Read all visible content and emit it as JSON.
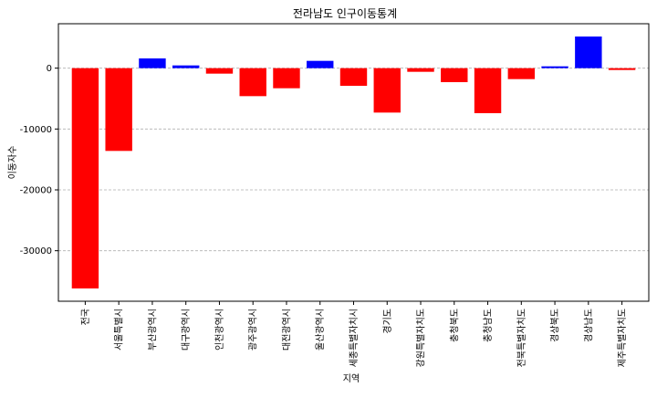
{
  "chart_data": {
    "type": "bar",
    "title": "전라남도 인구이동통계",
    "xlabel": "지역",
    "ylabel": "이동자수",
    "categories": [
      "전국",
      "서울특별시",
      "부산광역시",
      "대구광역시",
      "인천광역시",
      "광주광역시",
      "대전광역시",
      "울산광역시",
      "세종특별자치시",
      "경기도",
      "강원특별자치도",
      "충청북도",
      "충청남도",
      "전북특별자치도",
      "경상북도",
      "경상남도",
      "제주특별자치도"
    ],
    "values": [
      -36200,
      -13600,
      1600,
      450,
      -900,
      -4600,
      -3300,
      1200,
      -2900,
      -7300,
      -600,
      -2300,
      -7400,
      -1800,
      300,
      5200,
      -300
    ],
    "ylim": [
      -38300,
      7300
    ],
    "yticks": [
      0,
      -10000,
      -20000,
      -30000
    ],
    "ytick_labels": [
      "0",
      "-10000",
      "-20000",
      "-30000"
    ],
    "grid": true,
    "colors": {
      "positive": "#0000ff",
      "negative": "#ff0000",
      "grid": "#b0b0b0"
    }
  }
}
